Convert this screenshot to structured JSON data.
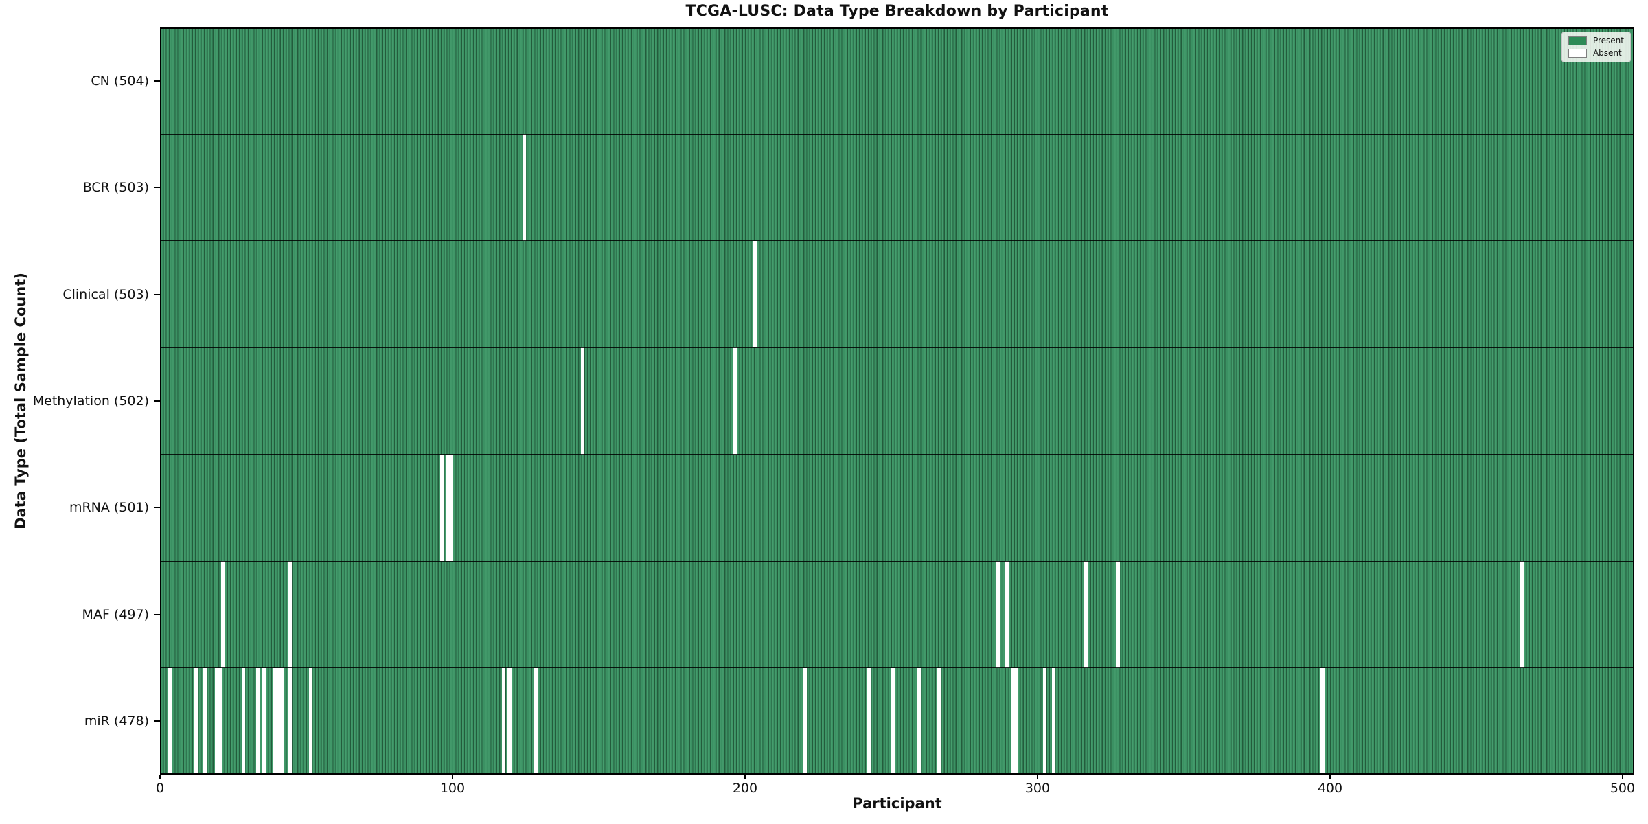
{
  "title": "TCGA-LUSC: Data Type Breakdown by Participant",
  "colors": {
    "present": "#2e8b57",
    "present_fill": "#3b9163",
    "cell_edge": "#235c3c",
    "absent": "#ffffff",
    "axis": "#000000",
    "legend_bg": "#fcfcf8"
  },
  "legend": {
    "present_label": "Present",
    "absent_label": "Absent"
  },
  "chart_data": {
    "type": "heatmap",
    "title": "TCGA-LUSC: Data Type Breakdown by Participant",
    "xlabel": "Participant",
    "ylabel": "Data Type (Total Sample Count)",
    "x_ticks": [
      0,
      100,
      200,
      300,
      400,
      500
    ],
    "xlim": [
      0,
      504
    ],
    "n_participants": 504,
    "grid": false,
    "legend_position": "upper right",
    "legend": [
      {
        "label": "Present",
        "color": "#2e8b57"
      },
      {
        "label": "Absent",
        "color": "#ffffff"
      }
    ],
    "rows": [
      {
        "data_type": "CN",
        "label": "CN (504)",
        "present_count": 504,
        "absent_count": 0,
        "absent_participants": []
      },
      {
        "data_type": "BCR",
        "label": "BCR (503)",
        "present_count": 503,
        "absent_count": 1,
        "absent_participants": [
          124
        ]
      },
      {
        "data_type": "Clinical",
        "label": "Clinical (503)",
        "present_count": 503,
        "absent_count": 1,
        "absent_participants": [
          203
        ]
      },
      {
        "data_type": "Methylation",
        "label": "Methylation (502)",
        "present_count": 502,
        "absent_count": 2,
        "absent_participants": [
          144,
          196
        ]
      },
      {
        "data_type": "mRNA",
        "label": "mRNA (501)",
        "present_count": 501,
        "absent_count": 3,
        "absent_participants": [
          96,
          98,
          99
        ]
      },
      {
        "data_type": "MAF",
        "label": "MAF (497)",
        "present_count": 497,
        "absent_count": 7,
        "absent_participants": [
          21,
          44,
          286,
          289,
          316,
          327,
          465
        ]
      },
      {
        "data_type": "miR",
        "label": "miR (478)",
        "present_count": 478,
        "absent_count": 26,
        "absent_participants": [
          3,
          12,
          15,
          19,
          20,
          28,
          33,
          35,
          39,
          40,
          41,
          44,
          51,
          117,
          119,
          128,
          220,
          242,
          250,
          259,
          266,
          291,
          292,
          302,
          305,
          397
        ]
      }
    ]
  }
}
